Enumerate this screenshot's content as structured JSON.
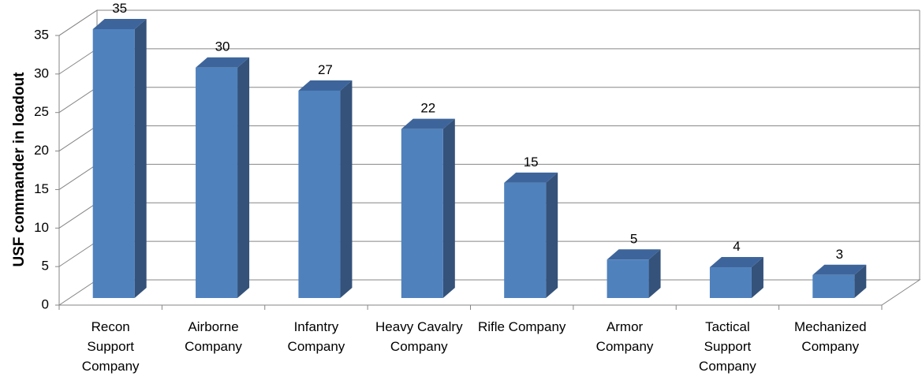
{
  "chart_data": {
    "type": "bar",
    "categories": [
      [
        "Recon",
        "Support",
        "Company"
      ],
      [
        "Airborne",
        "Company"
      ],
      [
        "Infantry",
        "Company"
      ],
      [
        "Heavy Cavalry",
        "Company"
      ],
      [
        "Rifle Company"
      ],
      [
        "Armor",
        "Company"
      ],
      [
        "Tactical",
        "Support",
        "Company"
      ],
      [
        "Mechanized",
        "Company"
      ]
    ],
    "values": [
      35,
      30,
      27,
      22,
      15,
      5,
      4,
      3
    ],
    "data_labels": [
      "35",
      "30",
      "27",
      "22",
      "15",
      "5",
      "4",
      "3"
    ],
    "ylabel": "USF commander in loadout",
    "ylim": [
      0,
      35
    ],
    "yticks": [
      0,
      5,
      10,
      15,
      20,
      25,
      30,
      35
    ],
    "grid": true,
    "legend": "none",
    "three_d": true,
    "colors": {
      "front": "#4F81BD",
      "side": "#34527A",
      "top": "#3E659B",
      "grid": "#868686"
    }
  }
}
